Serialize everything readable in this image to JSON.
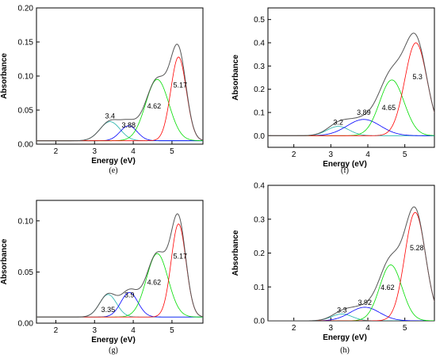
{
  "chart_data": [
    {
      "type": "line",
      "panel": "(e)",
      "xlabel": "Energy (eV)",
      "ylabel": "Absorbance",
      "xlim": [
        1.5,
        5.8
      ],
      "ylim": [
        0,
        0.2
      ],
      "xticks": [
        2,
        3,
        4,
        5
      ],
      "yticks": [
        0.0,
        0.05,
        0.1,
        0.15,
        0.2
      ],
      "ytick_decimals": 2,
      "baseline": 0.005,
      "peaks": [
        {
          "label": "3.4",
          "center": 3.4,
          "amplitude": 0.028,
          "sigma": 0.26,
          "color": "#20b2aa"
        },
        {
          "label": "3.88",
          "center": 3.88,
          "amplitude": 0.022,
          "sigma": 0.22,
          "color": "#0000ff"
        },
        {
          "label": "4.62",
          "center": 4.62,
          "amplitude": 0.09,
          "sigma": 0.3,
          "color": "#00dd00"
        },
        {
          "label": "5.17",
          "center": 5.17,
          "amplitude": 0.123,
          "sigma": 0.2,
          "color": "#ff0000"
        }
      ],
      "total_color": "#555555"
    },
    {
      "type": "line",
      "panel": "(f)",
      "xlabel": "Energy (eV)",
      "ylabel": "Absorbance",
      "xlim": [
        1.3,
        5.8
      ],
      "ylim": [
        -0.05,
        0.55
      ],
      "xticks": [
        2,
        3,
        4,
        5
      ],
      "yticks": [
        0.0,
        0.1,
        0.2,
        0.3,
        0.4,
        0.5
      ],
      "ytick_decimals": 1,
      "baseline": 0.0,
      "peaks": [
        {
          "label": "3.2",
          "center": 3.2,
          "amplitude": 0.04,
          "sigma": 0.3,
          "color": "#20b2aa"
        },
        {
          "label": "3.89",
          "center": 3.89,
          "amplitude": 0.07,
          "sigma": 0.45,
          "color": "#0000ff"
        },
        {
          "label": "4.65",
          "center": 4.65,
          "amplitude": 0.24,
          "sigma": 0.33,
          "color": "#00dd00"
        },
        {
          "label": "5.3",
          "center": 5.3,
          "amplitude": 0.4,
          "sigma": 0.3,
          "color": "#ff0000"
        }
      ],
      "total_color": "#555555"
    },
    {
      "type": "line",
      "panel": "(g)",
      "xlabel": "Energy (eV)",
      "ylabel": "Absorbance",
      "xlim": [
        1.5,
        5.8
      ],
      "ylim": [
        0,
        0.12
      ],
      "xticks": [
        2,
        3,
        4,
        5
      ],
      "yticks": [
        0.0,
        0.05,
        0.1
      ],
      "ytick_decimals": 2,
      "baseline": 0.006,
      "peaks": [
        {
          "label": "3.35",
          "center": 3.35,
          "amplitude": 0.022,
          "sigma": 0.22,
          "color": "#20b2aa"
        },
        {
          "label": "3.9",
          "center": 3.9,
          "amplitude": 0.024,
          "sigma": 0.22,
          "color": "#0000ff"
        },
        {
          "label": "4.62",
          "center": 4.62,
          "amplitude": 0.062,
          "sigma": 0.28,
          "color": "#00dd00"
        },
        {
          "label": "5.17",
          "center": 5.17,
          "amplitude": 0.091,
          "sigma": 0.19,
          "color": "#ff0000"
        }
      ],
      "total_color": "#555555"
    },
    {
      "type": "line",
      "panel": "(h)",
      "xlabel": "Energy (eV)",
      "ylabel": "Absorbance",
      "xlim": [
        1.3,
        5.8
      ],
      "ylim": [
        0,
        0.4
      ],
      "xticks": [
        2,
        3,
        4,
        5
      ],
      "yticks": [
        0.0,
        0.1,
        0.2,
        0.3,
        0.4
      ],
      "ytick_decimals": 1,
      "baseline": 0.0,
      "peaks": [
        {
          "label": "3.3",
          "center": 3.3,
          "amplitude": 0.02,
          "sigma": 0.28,
          "color": "#20b2aa"
        },
        {
          "label": "3.92",
          "center": 3.92,
          "amplitude": 0.04,
          "sigma": 0.4,
          "color": "#0000ff"
        },
        {
          "label": "4.62",
          "center": 4.62,
          "amplitude": 0.165,
          "sigma": 0.3,
          "color": "#00dd00"
        },
        {
          "label": "5.28",
          "center": 5.28,
          "amplitude": 0.32,
          "sigma": 0.28,
          "color": "#ff0000"
        }
      ],
      "total_color": "#555555"
    }
  ]
}
